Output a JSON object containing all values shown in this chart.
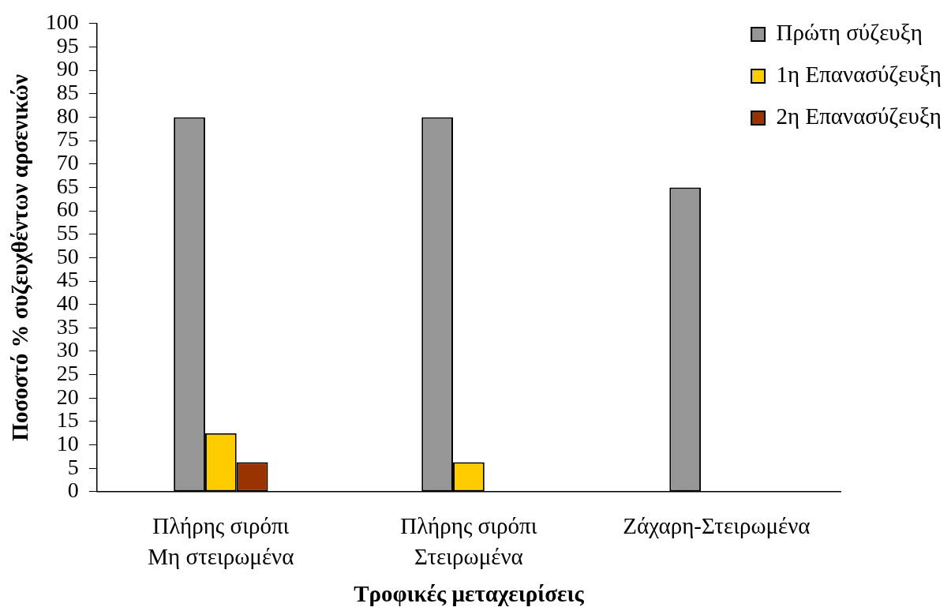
{
  "chart_data": {
    "type": "bar",
    "xlabel": "Τροφικές μεταχειρίσεις",
    "ylabel": "Ποσοστό % συζευχθέντων αρσενικών",
    "categories": [
      "Πλήρης σιρόπι\nΜη στειρωμένα",
      "Πλήρης σιρόπι\nΣτειρωμένα",
      "Ζάχαρη-Στειρωμένα"
    ],
    "series": [
      {
        "name": "Πρώτη σύζευξη",
        "color": "#969696",
        "values": [
          80,
          80,
          65
        ]
      },
      {
        "name": "1η Επανασύζευξη",
        "color": "#ffcc00",
        "values": [
          12.5,
          6.3,
          0
        ]
      },
      {
        "name": "2η Επανασύζευξη",
        "color": "#993300",
        "values": [
          6.3,
          0,
          0
        ]
      }
    ],
    "ylim": [
      0,
      100
    ],
    "yticks": [
      0,
      5,
      10,
      15,
      20,
      25,
      30,
      35,
      40,
      45,
      50,
      55,
      60,
      65,
      70,
      75,
      80,
      85,
      90,
      95,
      100
    ],
    "legend": "top right"
  }
}
